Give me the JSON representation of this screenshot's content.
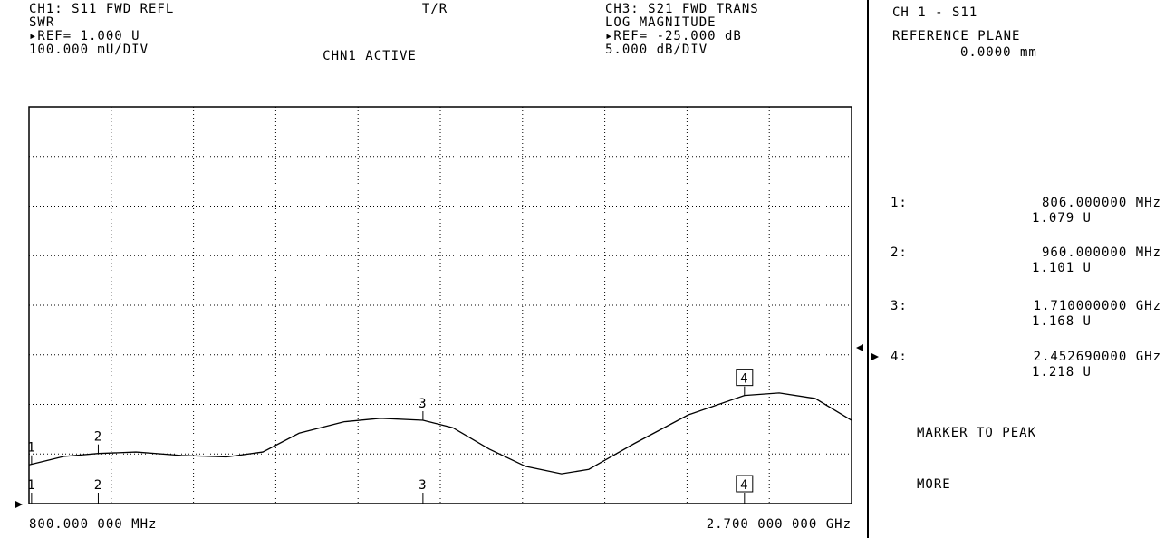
{
  "header": {
    "ch1_line1": "CH1: S11 FWD REFL",
    "ch1_line2": "SWR",
    "ch1_line3": "▸REF= 1.000 U",
    "ch1_line4": "100.000 mU/DIV",
    "center_line1": "T/R",
    "center_line2": "CHN1 ACTIVE",
    "ch3_line1": "CH3: S21 FWD TRANS",
    "ch3_line2": "LOG MAGNITUDE",
    "ch3_line3": "▸REF= -25.000 dB",
    "ch3_line4": "5.000 dB/DIV"
  },
  "chart_data": {
    "type": "line",
    "start_label": "800.000 000 MHz",
    "stop_label": "2.700 000 000 GHz",
    "xlim": [
      800,
      2700
    ],
    "ylim": [
      1.0,
      1.8
    ],
    "x_divisions": 10,
    "y_divisions": 8,
    "x": [
      800,
      880,
      960,
      1047,
      1152,
      1256,
      1340,
      1424,
      1528,
      1612,
      1710,
      1779,
      1863,
      1947,
      2030,
      2093,
      2198,
      2323,
      2452.69,
      2533,
      2616,
      2700
    ],
    "values": [
      1.078,
      1.095,
      1.101,
      1.104,
      1.097,
      1.094,
      1.104,
      1.142,
      1.165,
      1.172,
      1.168,
      1.153,
      1.11,
      1.075,
      1.06,
      1.069,
      1.121,
      1.179,
      1.218,
      1.223,
      1.212,
      1.168
    ],
    "markers": [
      {
        "name": "1",
        "label": "1:",
        "freq": "806.000000 MHz",
        "reading": "1.079 U",
        "x": 806,
        "y": 1.079
      },
      {
        "name": "2",
        "label": "2:",
        "freq": "960.000000 MHz",
        "reading": "1.101 U",
        "x": 960,
        "y": 1.101
      },
      {
        "name": "3",
        "label": "3:",
        "freq": "1.710000000 GHz",
        "reading": "1.168 U",
        "x": 1710,
        "y": 1.168
      },
      {
        "name": "4",
        "label": "4:",
        "freq": "2.452690000 GHz",
        "reading": "1.218 U",
        "x": 2452.69,
        "y": 1.218
      }
    ]
  },
  "panel": {
    "line1": "CH 1 - S11",
    "line2": "REFERENCE PLANE",
    "line3": "0.0000 mm",
    "softkey1": "MARKER TO PEAK",
    "softkey2": "MORE"
  }
}
